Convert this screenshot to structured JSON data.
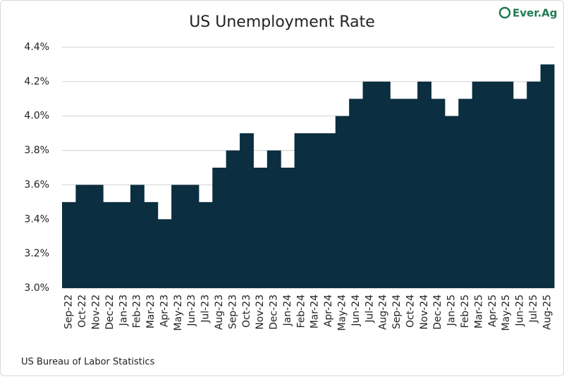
{
  "chart_data": {
    "type": "bar",
    "title": "US Unemployment Rate",
    "logo": "Ever.Ag",
    "source": "US Bureau of Labor Statistics",
    "categories": [
      "Sep-22",
      "Oct-22",
      "Nov-22",
      "Dec-22",
      "Jan-23",
      "Feb-23",
      "Mar-23",
      "Apr-23",
      "May-23",
      "Jun-23",
      "Jul-23",
      "Aug-23",
      "Sep-23",
      "Oct-23",
      "Nov-23",
      "Dec-23",
      "Jan-24",
      "Feb-24",
      "Mar-24",
      "Apr-24",
      "May-24",
      "Jun-24",
      "Jul-24",
      "Aug-24",
      "Sep-24",
      "Oct-24",
      "Nov-24",
      "Dec-24",
      "Jan-25",
      "Feb-25",
      "Mar-25",
      "Apr-25",
      "May-25",
      "Jun-25",
      "Jul-25",
      "Aug-25"
    ],
    "values": [
      3.5,
      3.6,
      3.6,
      3.5,
      3.5,
      3.6,
      3.5,
      3.4,
      3.6,
      3.6,
      3.5,
      3.7,
      3.8,
      3.9,
      3.7,
      3.8,
      3.7,
      3.9,
      3.9,
      3.9,
      4.0,
      4.1,
      4.2,
      4.2,
      4.1,
      4.1,
      4.2,
      4.1,
      4.0,
      4.1,
      4.2,
      4.2,
      4.2,
      4.1,
      4.2,
      4.3
    ],
    "color": "#0b2e40",
    "ylim": [
      3.0,
      4.4
    ],
    "yticks": [
      {
        "value": 3.0,
        "label": "3.0%"
      },
      {
        "value": 3.2,
        "label": "3.2%"
      },
      {
        "value": 3.4,
        "label": "3.4%"
      },
      {
        "value": 3.6,
        "label": "3.6%"
      },
      {
        "value": 3.8,
        "label": "3.8%"
      },
      {
        "value": 4.0,
        "label": "4.0%"
      },
      {
        "value": 4.2,
        "label": "4.2%"
      },
      {
        "value": 4.4,
        "label": "4.4%"
      }
    ],
    "grid": true
  }
}
